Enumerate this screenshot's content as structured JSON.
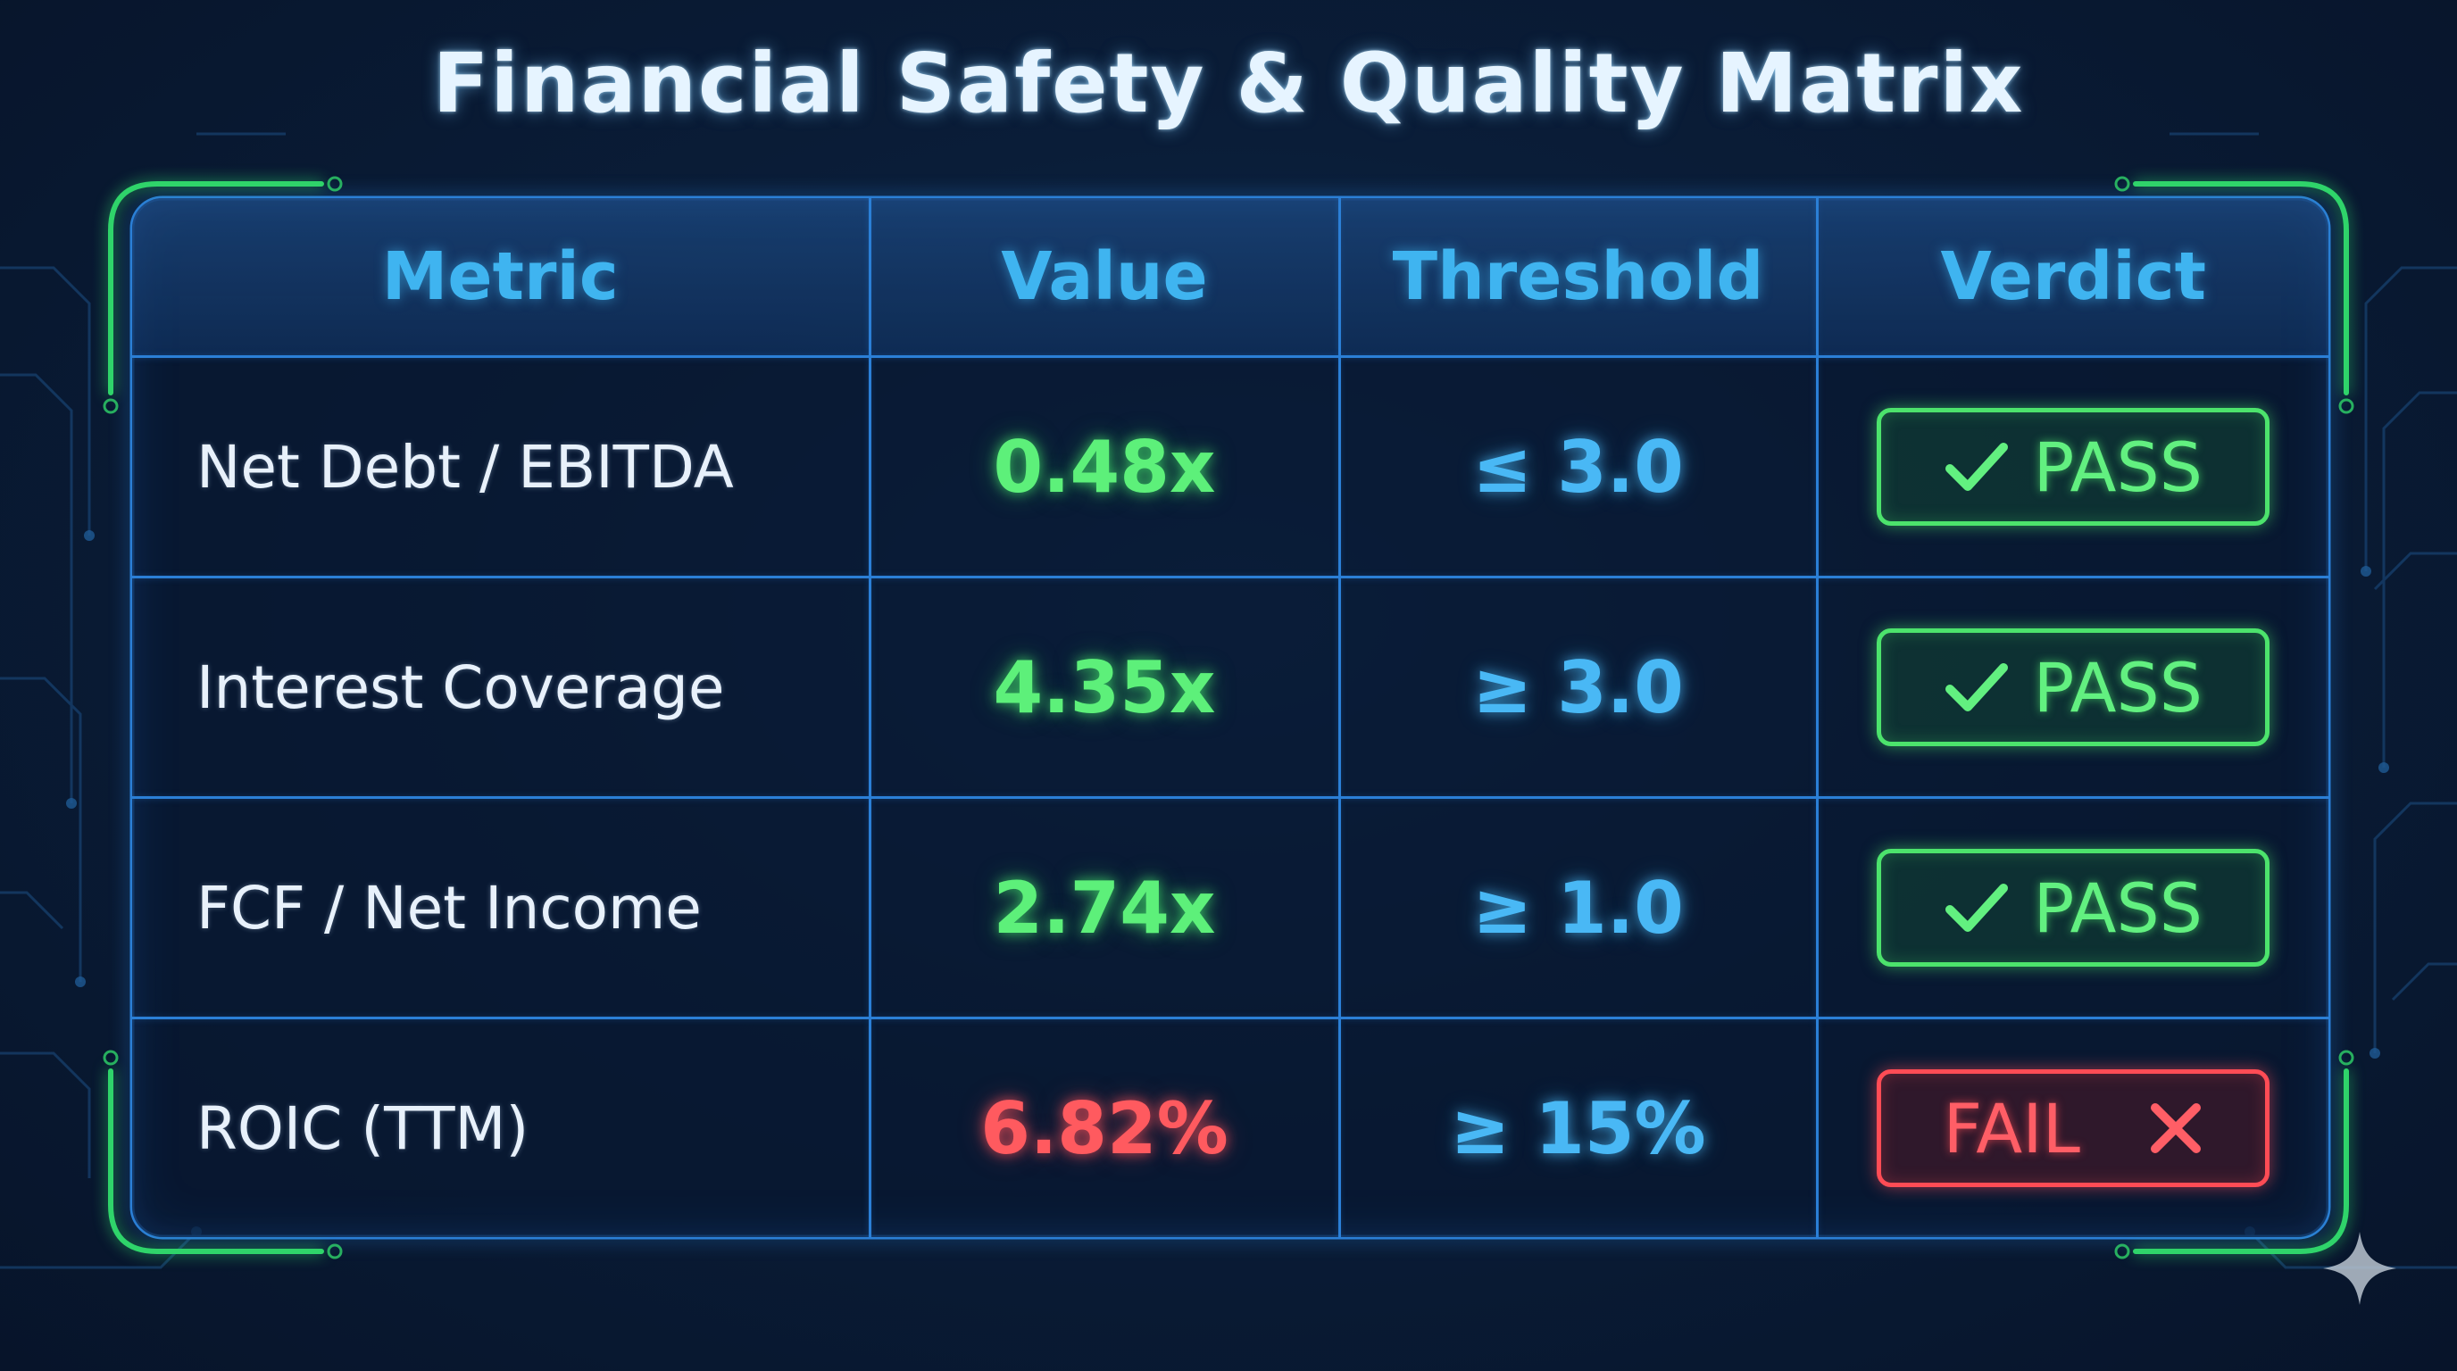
{
  "title": "Financial Safety & Quality Matrix",
  "table": {
    "headers": {
      "metric": "Metric",
      "value": "Value",
      "threshold": "Threshold",
      "verdict": "Verdict"
    },
    "rows": [
      {
        "metric": "Net Debt / EBITDA",
        "value": "0.48x",
        "threshold": "≤ 3.0",
        "verdict": "PASS",
        "status": "pass"
      },
      {
        "metric": "Interest Coverage",
        "value": "4.35x",
        "threshold": "≥ 3.0",
        "verdict": "PASS",
        "status": "pass"
      },
      {
        "metric": "FCF / Net Income",
        "value": "2.74x",
        "threshold": "≥ 1.0",
        "verdict": "PASS",
        "status": "pass"
      },
      {
        "metric": "ROIC (TTM)",
        "value": "6.82%",
        "threshold": "≥ 15%",
        "verdict": "FAIL",
        "status": "fail"
      }
    ]
  },
  "icons": {
    "pass": "check-icon",
    "fail": "cross-icon",
    "corner": "sparkle-icon"
  },
  "colors": {
    "background": "#0a1d38",
    "grid": "#2b7fd6",
    "frame_accent": "#2fd46a",
    "header_text": "#3fb4f0",
    "pass": "#4ce36c",
    "fail": "#ff4c55",
    "threshold": "#49b8f5",
    "title": "#e6f4ff"
  }
}
